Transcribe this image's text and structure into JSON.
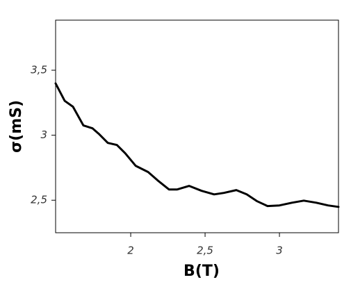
{
  "chart_data": {
    "type": "line",
    "xlabel": "B(T)",
    "ylabel": "σ(mS)",
    "x": [
      1.495,
      1.556,
      1.612,
      1.682,
      1.743,
      1.785,
      1.846,
      1.907,
      1.963,
      2.033,
      2.117,
      2.187,
      2.257,
      2.313,
      2.393,
      2.477,
      2.561,
      2.626,
      2.71,
      2.78,
      2.85,
      2.92,
      3.0,
      3.084,
      3.164,
      3.248,
      3.327,
      3.397
    ],
    "series": [
      {
        "name": "σ",
        "color": "#000000",
        "values": [
          3.398,
          3.264,
          3.219,
          3.075,
          3.053,
          3.011,
          2.941,
          2.925,
          2.861,
          2.765,
          2.717,
          2.647,
          2.583,
          2.583,
          2.61,
          2.572,
          2.545,
          2.556,
          2.578,
          2.545,
          2.492,
          2.455,
          2.46,
          2.481,
          2.497,
          2.481,
          2.46,
          2.449
        ]
      }
    ],
    "xlim": [
      1.495,
      3.397
    ],
    "ylim": [
      2.25,
      3.885
    ],
    "xticks": [
      2,
      {
        "value": 2.5,
        "label": "2,5"
      },
      3
    ],
    "yticks": [
      {
        "value": 2.5,
        "label": "2,5"
      },
      3,
      {
        "value": 3.5,
        "label": "3,5"
      }
    ],
    "grid": false
  }
}
